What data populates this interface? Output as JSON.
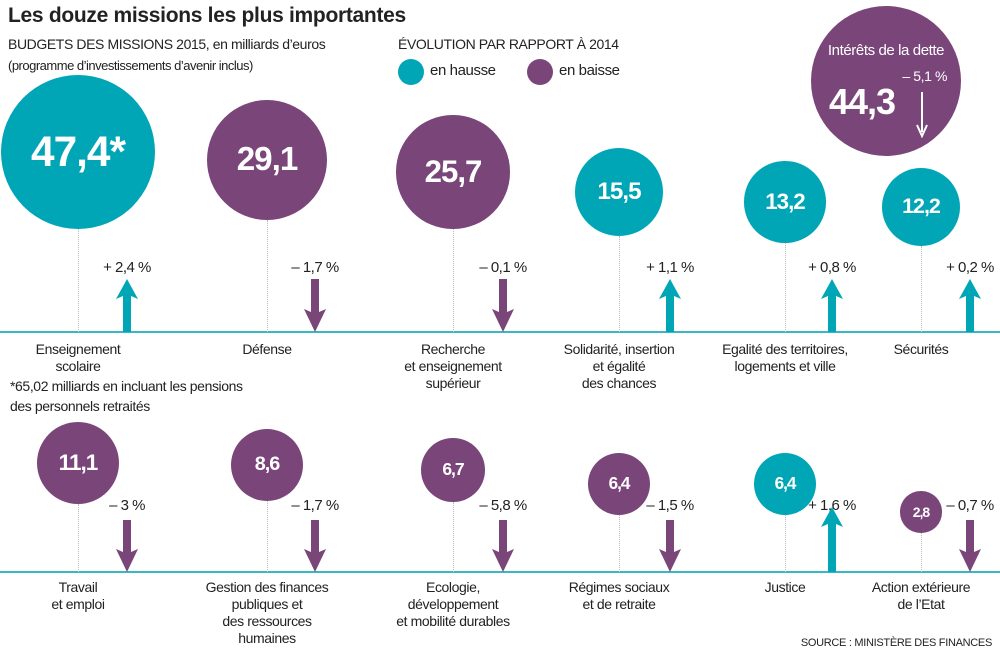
{
  "title": "Les douze missions les plus importantes",
  "subtitle": "BUDGETS DES MISSIONS 2015, en milliards d’euros",
  "subtitle_note": "(programme d’investissements d’avenir inclus)",
  "legend": {
    "title": "ÉVOLUTION PAR RAPPORT À 2014",
    "items": [
      {
        "label": "en hausse",
        "color": "#00a6b6"
      },
      {
        "label": "en baisse",
        "color": "#7a4679"
      }
    ]
  },
  "footnote": "*65,02 milliards en incluant les pensions\ndes personnels retraités",
  "source": "SOURCE : MINISTÈRE DES FINANCES",
  "chart_data": {
    "type": "bubble",
    "unit": "milliards d’euros",
    "debt": {
      "label": "Intérêts de la dette",
      "value": 44.3,
      "value_label": "44,3",
      "change": -5.1,
      "change_label": "– 5,1 %",
      "trend": "down"
    },
    "missions": [
      {
        "name": "Enseignement\nscolaire",
        "value": 47.4,
        "value_label": "47,4*",
        "change": 2.4,
        "change_label": "+ 2,4 %",
        "trend": "up"
      },
      {
        "name": "Défense",
        "value": 29.1,
        "value_label": "29,1",
        "change": -1.7,
        "change_label": "– 1,7 %",
        "trend": "down"
      },
      {
        "name": "Recherche\net enseignement\nsupérieur",
        "value": 25.7,
        "value_label": "25,7",
        "change": -0.1,
        "change_label": "– 0,1 %",
        "trend": "down"
      },
      {
        "name": "Solidarité, insertion\net égalité\ndes chances",
        "value": 15.5,
        "value_label": "15,5",
        "change": 1.1,
        "change_label": "+ 1,1 %",
        "trend": "up"
      },
      {
        "name": "Egalité des territoires,\nlogements et ville",
        "value": 13.2,
        "value_label": "13,2",
        "change": 0.8,
        "change_label": "+ 0,8 %",
        "trend": "up"
      },
      {
        "name": "Sécurités",
        "value": 12.2,
        "value_label": "12,2",
        "change": 0.2,
        "change_label": "+ 0,2 %",
        "trend": "up"
      },
      {
        "name": "Travail\net emploi",
        "value": 11.1,
        "value_label": "11,1",
        "change": -3,
        "change_label": "– 3 %",
        "trend": "down"
      },
      {
        "name": "Gestion des finances\npubliques et\ndes ressources\nhumaines",
        "value": 8.6,
        "value_label": "8,6",
        "change": -1.7,
        "change_label": "– 1,7 %",
        "trend": "down"
      },
      {
        "name": "Ecologie,\ndéveloppement\net mobilité durables",
        "value": 6.7,
        "value_label": "6,7",
        "change": -5.8,
        "change_label": "– 5,8 %",
        "trend": "down"
      },
      {
        "name": "Régimes sociaux\net de retraite",
        "value": 6.4,
        "value_label": "6,4",
        "change": -1.5,
        "change_label": "– 1,5 %",
        "trend": "down"
      },
      {
        "name": "Justice",
        "value": 6.4,
        "value_label": "6,4",
        "change": 1.6,
        "change_label": "+ 1,6 %",
        "trend": "up"
      },
      {
        "name": "Action extérieure\nde l’Etat",
        "value": 2.8,
        "value_label": "2,8",
        "change": -0.7,
        "change_label": "– 0,7 %",
        "trend": "down"
      }
    ]
  }
}
